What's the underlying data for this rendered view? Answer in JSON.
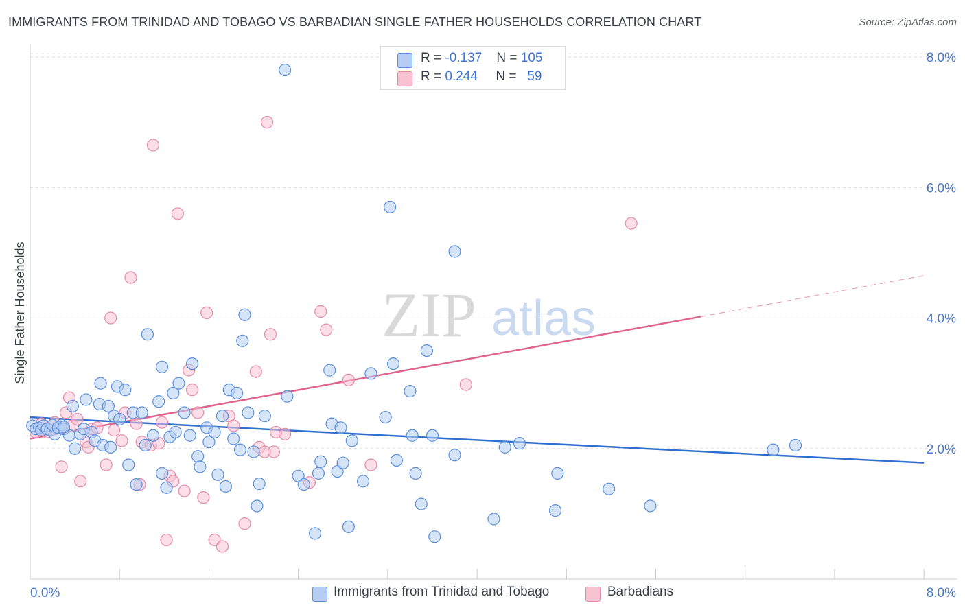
{
  "title": "IMMIGRANTS FROM TRINIDAD AND TOBAGO VS BARBADIAN SINGLE FATHER HOUSEHOLDS CORRELATION CHART",
  "source": "Source: ZipAtlas.com",
  "watermark": {
    "zip": "ZIP",
    "atlas": "atlas"
  },
  "colors": {
    "blue_fill": "#b5cdf3",
    "blue_stroke": "#5b8fdc",
    "blue_line": "#2f6fd0",
    "pink_fill": "#f7c3d3",
    "pink_stroke": "#e48aa8",
    "pink_line": "#e0628e",
    "tick_text": "#4a78c8",
    "grid": "#d8dce2"
  },
  "stats": {
    "rows": [
      {
        "r_label": "R =",
        "r_value": "-0.137",
        "n_label": "N =",
        "n_value": "105"
      },
      {
        "r_label": "R =",
        "r_value": "0.244",
        "n_label": "N =",
        "n_value": "59"
      }
    ]
  },
  "legend": {
    "blue": "Immigrants from Trinidad and Tobago",
    "pink": "Barbadians"
  },
  "chart_data": {
    "type": "scatter",
    "xlabel": "",
    "ylabel": "Single Father Households",
    "xlim": [
      0,
      8.3
    ],
    "ylim": [
      0,
      8.2
    ],
    "x_tick_labels": [
      {
        "v": 0,
        "label": "0.0%"
      },
      {
        "v": 8,
        "label": "8.0%"
      }
    ],
    "y_tick_labels": [
      {
        "v": 2,
        "label": "2.0%"
      },
      {
        "v": 4,
        "label": "4.0%"
      },
      {
        "v": 6,
        "label": "6.0%"
      },
      {
        "v": 8,
        "label": "8.0%"
      }
    ],
    "grid": true,
    "legend_position": "bottom",
    "series": [
      {
        "name": "Immigrants from Trinidad and Tobago",
        "color": "#5b8fdc",
        "trend": {
          "x0": 0,
          "y0": 2.48,
          "x1": 8.0,
          "y1": 1.78
        },
        "points": [
          [
            0.02,
            2.35
          ],
          [
            0.05,
            2.3
          ],
          [
            0.08,
            2.32
          ],
          [
            0.1,
            2.28
          ],
          [
            0.12,
            2.35
          ],
          [
            0.15,
            2.3
          ],
          [
            0.18,
            2.28
          ],
          [
            0.2,
            2.36
          ],
          [
            0.22,
            2.22
          ],
          [
            0.25,
            2.32
          ],
          [
            0.28,
            2.36
          ],
          [
            0.3,
            2.3
          ],
          [
            0.35,
            2.2
          ],
          [
            0.38,
            2.65
          ],
          [
            0.4,
            2.0
          ],
          [
            0.45,
            2.22
          ],
          [
            0.48,
            2.3
          ],
          [
            0.5,
            2.75
          ],
          [
            0.55,
            2.25
          ],
          [
            0.58,
            2.12
          ],
          [
            0.62,
            2.68
          ],
          [
            0.63,
            3.0
          ],
          [
            0.65,
            2.05
          ],
          [
            0.7,
            2.65
          ],
          [
            0.72,
            2.02
          ],
          [
            0.75,
            2.5
          ],
          [
            0.78,
            2.95
          ],
          [
            0.8,
            2.45
          ],
          [
            0.85,
            2.9
          ],
          [
            0.88,
            1.75
          ],
          [
            0.92,
            2.55
          ],
          [
            0.95,
            1.45
          ],
          [
            1.0,
            2.55
          ],
          [
            1.03,
            2.05
          ],
          [
            1.05,
            3.75
          ],
          [
            1.1,
            2.2
          ],
          [
            1.15,
            2.72
          ],
          [
            1.18,
            1.62
          ],
          [
            1.18,
            3.25
          ],
          [
            1.22,
            1.4
          ],
          [
            1.25,
            2.18
          ],
          [
            1.28,
            2.85
          ],
          [
            1.3,
            2.25
          ],
          [
            1.33,
            3.0
          ],
          [
            1.38,
            2.55
          ],
          [
            1.43,
            2.2
          ],
          [
            1.45,
            3.3
          ],
          [
            1.5,
            1.88
          ],
          [
            1.52,
            1.72
          ],
          [
            1.58,
            2.32
          ],
          [
            1.6,
            2.1
          ],
          [
            1.65,
            2.25
          ],
          [
            1.68,
            1.6
          ],
          [
            1.72,
            2.5
          ],
          [
            1.75,
            1.42
          ],
          [
            1.78,
            2.9
          ],
          [
            1.82,
            2.15
          ],
          [
            1.85,
            2.85
          ],
          [
            1.88,
            1.98
          ],
          [
            1.9,
            3.65
          ],
          [
            1.92,
            4.05
          ],
          [
            1.95,
            2.55
          ],
          [
            2.0,
            1.95
          ],
          [
            2.03,
            1.12
          ],
          [
            2.05,
            1.46
          ],
          [
            2.1,
            2.5
          ],
          [
            2.28,
            7.8
          ],
          [
            2.3,
            2.8
          ],
          [
            2.4,
            1.58
          ],
          [
            2.45,
            1.45
          ],
          [
            2.55,
            0.7
          ],
          [
            2.58,
            1.62
          ],
          [
            2.6,
            1.8
          ],
          [
            2.68,
            3.2
          ],
          [
            2.7,
            2.38
          ],
          [
            2.75,
            1.65
          ],
          [
            2.78,
            2.32
          ],
          [
            2.8,
            1.78
          ],
          [
            2.85,
            0.8
          ],
          [
            2.88,
            2.12
          ],
          [
            2.98,
            1.5
          ],
          [
            3.05,
            3.15
          ],
          [
            3.18,
            2.48
          ],
          [
            3.22,
            5.7
          ],
          [
            3.25,
            3.3
          ],
          [
            3.28,
            1.82
          ],
          [
            3.4,
            2.88
          ],
          [
            3.42,
            2.2
          ],
          [
            3.45,
            1.62
          ],
          [
            3.5,
            1.15
          ],
          [
            3.55,
            3.5
          ],
          [
            3.6,
            2.2
          ],
          [
            3.62,
            0.65
          ],
          [
            3.8,
            5.02
          ],
          [
            3.8,
            1.9
          ],
          [
            4.15,
            0.92
          ],
          [
            4.25,
            2.02
          ],
          [
            4.38,
            2.08
          ],
          [
            4.7,
            1.05
          ],
          [
            4.72,
            1.62
          ],
          [
            5.18,
            1.38
          ],
          [
            5.55,
            1.12
          ],
          [
            6.65,
            1.98
          ],
          [
            6.85,
            2.05
          ],
          [
            0.3,
            2.33
          ]
        ]
      },
      {
        "name": "Barbadians",
        "color": "#e48aa8",
        "trend": {
          "x0": 0,
          "y0": 2.15,
          "x1": 6.0,
          "y1": 4.02,
          "dash_x1": 8.0,
          "dash_y1": 4.65
        },
        "points": [
          [
            0.05,
            2.25
          ],
          [
            0.1,
            2.38
          ],
          [
            0.12,
            2.28
          ],
          [
            0.15,
            2.25
          ],
          [
            0.18,
            2.3
          ],
          [
            0.22,
            2.4
          ],
          [
            0.28,
            1.72
          ],
          [
            0.32,
            2.55
          ],
          [
            0.35,
            2.78
          ],
          [
            0.38,
            2.35
          ],
          [
            0.42,
            2.45
          ],
          [
            0.45,
            1.5
          ],
          [
            0.5,
            2.1
          ],
          [
            0.52,
            2.02
          ],
          [
            0.55,
            2.3
          ],
          [
            0.6,
            2.32
          ],
          [
            0.68,
            1.75
          ],
          [
            0.72,
            4.0
          ],
          [
            0.75,
            2.28
          ],
          [
            0.82,
            2.12
          ],
          [
            0.85,
            2.55
          ],
          [
            0.9,
            4.62
          ],
          [
            0.95,
            2.38
          ],
          [
            0.98,
            1.45
          ],
          [
            1.0,
            2.1
          ],
          [
            1.08,
            2.05
          ],
          [
            1.1,
            6.65
          ],
          [
            1.15,
            2.08
          ],
          [
            1.18,
            2.4
          ],
          [
            1.22,
            0.6
          ],
          [
            1.25,
            1.58
          ],
          [
            1.28,
            1.5
          ],
          [
            1.32,
            5.6
          ],
          [
            1.38,
            1.35
          ],
          [
            1.42,
            3.2
          ],
          [
            1.45,
            2.9
          ],
          [
            1.5,
            2.55
          ],
          [
            1.55,
            1.25
          ],
          [
            1.58,
            4.08
          ],
          [
            1.65,
            0.6
          ],
          [
            1.72,
            0.5
          ],
          [
            1.78,
            2.5
          ],
          [
            1.82,
            2.35
          ],
          [
            1.92,
            0.85
          ],
          [
            2.02,
            3.18
          ],
          [
            2.05,
            2.02
          ],
          [
            2.1,
            1.95
          ],
          [
            2.12,
            7.0
          ],
          [
            2.15,
            3.75
          ],
          [
            2.18,
            1.95
          ],
          [
            2.2,
            2.25
          ],
          [
            2.28,
            2.22
          ],
          [
            2.5,
            1.48
          ],
          [
            2.6,
            4.1
          ],
          [
            2.65,
            3.82
          ],
          [
            2.85,
            3.05
          ],
          [
            3.05,
            1.75
          ],
          [
            3.9,
            2.98
          ],
          [
            5.38,
            5.45
          ]
        ]
      }
    ]
  }
}
